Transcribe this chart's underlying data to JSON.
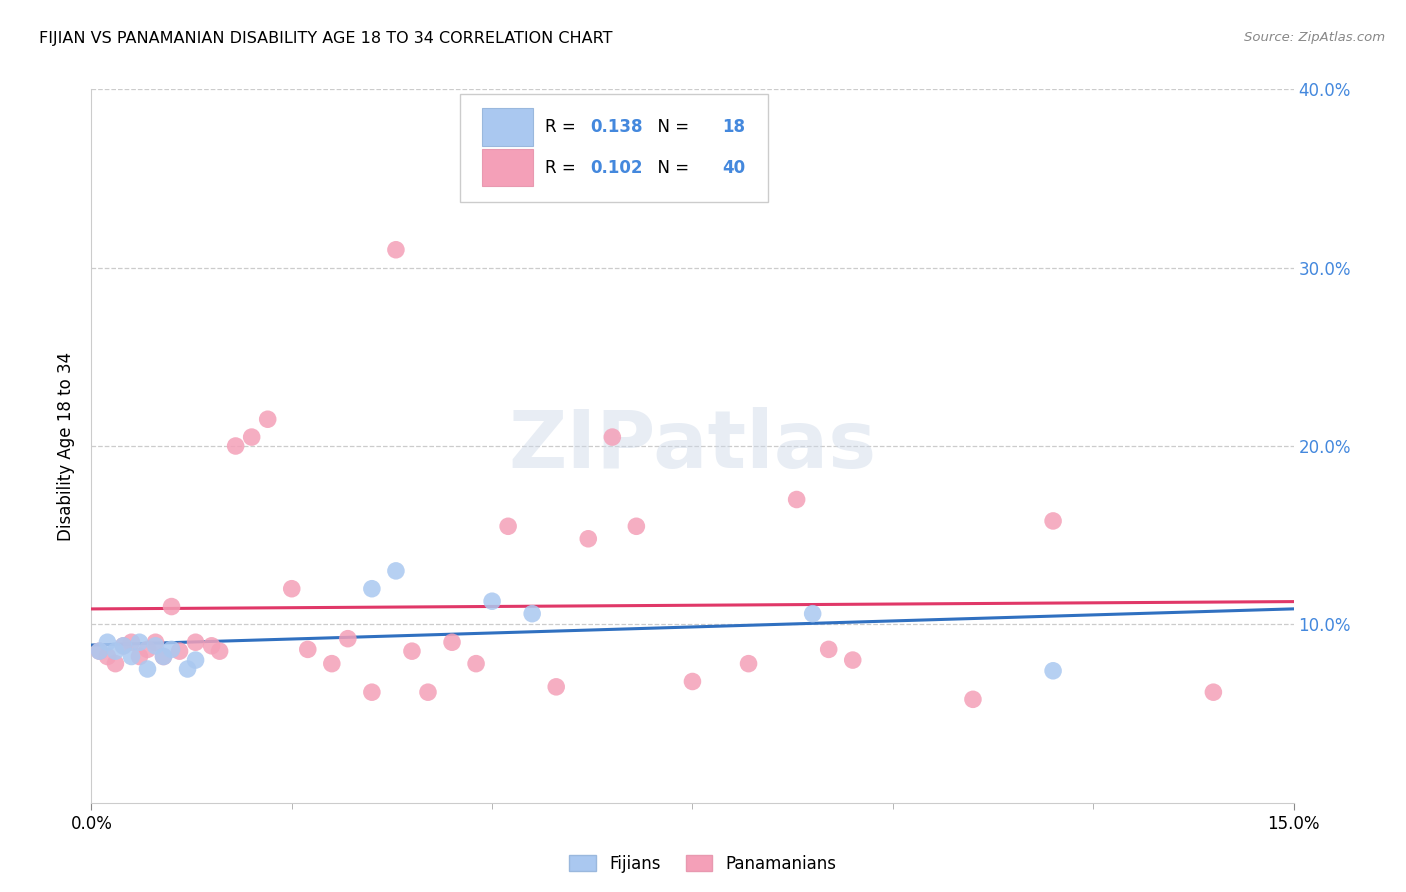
{
  "title": "FIJIAN VS PANAMANIAN DISABILITY AGE 18 TO 34 CORRELATION CHART",
  "source": "Source: ZipAtlas.com",
  "ylabel": "Disability Age 18 to 34",
  "xmin": 0.0,
  "xmax": 0.15,
  "ymin": 0.0,
  "ymax": 0.4,
  "yticks": [
    0.0,
    0.1,
    0.2,
    0.3,
    0.4
  ],
  "ytick_labels": [
    "",
    "10.0%",
    "20.0%",
    "30.0%",
    "40.0%"
  ],
  "fijian_color": "#aac8f0",
  "panamanian_color": "#f4a0b8",
  "fijian_line_color": "#3070c0",
  "panamanian_line_color": "#e03868",
  "fijian_R": 0.138,
  "fijian_N": 18,
  "panamanian_R": 0.102,
  "panamanian_N": 40,
  "fijian_points_x": [
    0.001,
    0.002,
    0.003,
    0.004,
    0.005,
    0.006,
    0.007,
    0.008,
    0.009,
    0.01,
    0.012,
    0.013,
    0.035,
    0.038,
    0.05,
    0.055,
    0.09,
    0.12
  ],
  "fijian_points_y": [
    0.085,
    0.09,
    0.085,
    0.088,
    0.082,
    0.09,
    0.075,
    0.088,
    0.082,
    0.086,
    0.075,
    0.08,
    0.12,
    0.13,
    0.113,
    0.106,
    0.106,
    0.074
  ],
  "panamanian_points_x": [
    0.001,
    0.002,
    0.003,
    0.004,
    0.005,
    0.006,
    0.007,
    0.008,
    0.009,
    0.01,
    0.011,
    0.013,
    0.015,
    0.016,
    0.018,
    0.02,
    0.022,
    0.025,
    0.027,
    0.03,
    0.032,
    0.035,
    0.038,
    0.04,
    0.042,
    0.045,
    0.048,
    0.052,
    0.058,
    0.062,
    0.065,
    0.068,
    0.075,
    0.082,
    0.088,
    0.092,
    0.095,
    0.11,
    0.12,
    0.14
  ],
  "panamanian_points_y": [
    0.085,
    0.082,
    0.078,
    0.088,
    0.09,
    0.082,
    0.086,
    0.09,
    0.082,
    0.11,
    0.085,
    0.09,
    0.088,
    0.085,
    0.2,
    0.205,
    0.215,
    0.12,
    0.086,
    0.078,
    0.092,
    0.062,
    0.31,
    0.085,
    0.062,
    0.09,
    0.078,
    0.155,
    0.065,
    0.148,
    0.205,
    0.155,
    0.068,
    0.078,
    0.17,
    0.086,
    0.08,
    0.058,
    0.158,
    0.062
  ],
  "xtick_positions": [
    0.025,
    0.05,
    0.075,
    0.1,
    0.125
  ],
  "legend_R1": "R = 0.138   N =  18",
  "legend_R2": "R = 0.102   N = 40"
}
